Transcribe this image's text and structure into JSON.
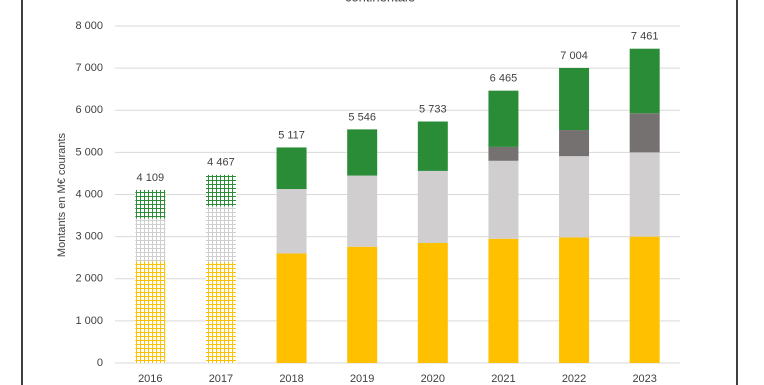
{
  "chart_data": {
    "type": "stacked-bar",
    "title": "continentale",
    "y_label": "Montants en M€ courants",
    "categories": [
      "2016",
      "2017",
      "2018",
      "2019",
      "2020",
      "2021",
      "2022",
      "2023"
    ],
    "series": [
      {
        "color": "#ffc000",
        "values": [
          2420,
          2400,
          2600,
          2760,
          2850,
          2950,
          2980,
          3000
        ]
      },
      {
        "color": "#d0cece",
        "values": [
          1010,
          1320,
          1530,
          1690,
          1710,
          1850,
          1930,
          2000
        ]
      },
      {
        "color": "#767171",
        "values": [
          0,
          0,
          0,
          0,
          0,
          330,
          620,
          930
        ]
      },
      {
        "color": "#2a8c36",
        "values": [
          679,
          747,
          987,
          1096,
          1173,
          1335,
          1474,
          1531
        ]
      }
    ],
    "totals": {
      "values": [
        4109,
        4467,
        5117,
        5546,
        5733,
        6465,
        7004,
        7461
      ],
      "value_labels": [
        "4 109",
        "4 467",
        "5 117",
        "5 546",
        "5 733",
        "6 465",
        "7 004",
        "7 461"
      ]
    },
    "hatched": [
      true,
      true,
      false,
      false,
      false,
      false,
      false,
      false
    ],
    "ylim": [
      0,
      8000
    ],
    "yticks": [
      0,
      {
        "value": 1000,
        "label": "1 000"
      },
      {
        "value": 2000,
        "label": "2 000"
      },
      {
        "value": 3000,
        "label": "3 000"
      },
      {
        "value": 4000,
        "label": "4 000"
      },
      {
        "value": 5000,
        "label": "5 000"
      },
      {
        "value": 6000,
        "label": "6 000"
      },
      {
        "value": 7000,
        "label": "7 000"
      },
      {
        "value": 8000,
        "label": "8 000"
      }
    ],
    "grid": true
  }
}
